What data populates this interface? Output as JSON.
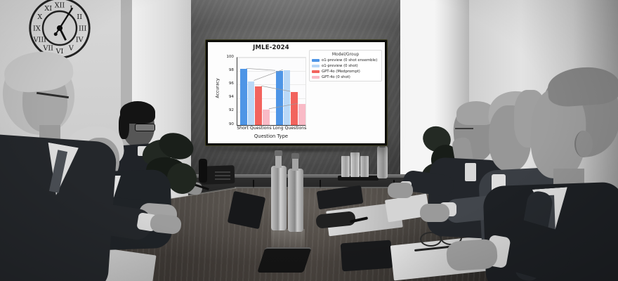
{
  "scene": {
    "clock_numerals": [
      "XII",
      "I",
      "II",
      "III",
      "IV",
      "V",
      "VI",
      "VII",
      "VIII",
      "IX",
      "X",
      "XI"
    ]
  },
  "chart_data": {
    "type": "bar",
    "title": "JMLE-2024",
    "xlabel": "Question Type",
    "ylabel": "Accuracy",
    "ylim": [
      90,
      100
    ],
    "yticks": [
      90,
      92,
      94,
      96,
      98,
      100
    ],
    "categories": [
      "Short Questions",
      "Long Questions"
    ],
    "legend_title": "Model/Group",
    "legend_position": "right",
    "grid": true,
    "connectors": true,
    "series": [
      {
        "name": "o1-preview (0 shot ensemble)",
        "color": "#4e95e6",
        "values": [
          98.3,
          98.0
        ]
      },
      {
        "name": "o1-preview (0 shot)",
        "color": "#b9d8f7",
        "values": [
          96.5,
          98.1
        ]
      },
      {
        "name": "GPT-4o (Medprompt)",
        "color": "#f2635d",
        "values": [
          95.7,
          94.9
        ]
      },
      {
        "name": "GPT-4o (0 shot)",
        "color": "#f9bac6",
        "values": [
          92.3,
          93.1
        ]
      }
    ]
  }
}
